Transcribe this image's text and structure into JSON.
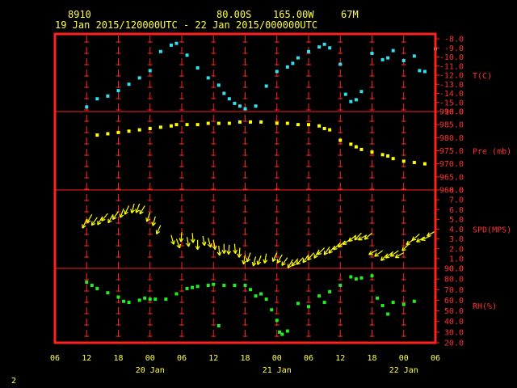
{
  "header": {
    "station_id": "8910",
    "lat": "80.00S",
    "lon": "165.00W",
    "elev": "67M",
    "time_range": "19 Jan 2015/120000UTC - 22 Jan 2015/000000UTC"
  },
  "page_number": "2",
  "colors": {
    "temp": "#33e0f0",
    "pressure": "#ffff00",
    "wind": "#ffff00",
    "rh": "#22ee22",
    "frame": "#ff2020",
    "grid": "#ff2020",
    "text": "#ffff44"
  },
  "chart_data": {
    "type": "scatter",
    "x_axis": {
      "unit": "hour",
      "range_hours": [
        -6,
        66
      ],
      "tick_labels": [
        "06",
        "12",
        "18",
        "00",
        "06",
        "12",
        "18",
        "00",
        "06",
        "12",
        "18",
        "00",
        "06"
      ],
      "tick_hours": [
        -6,
        0,
        6,
        12,
        18,
        24,
        30,
        36,
        42,
        48,
        54,
        60,
        66
      ],
      "day_labels": [
        {
          "label": "20 Jan",
          "hour": 12
        },
        {
          "label": "21 Jan",
          "hour": 36
        },
        {
          "label": "22 Jan",
          "hour": 60
        }
      ]
    },
    "panels": [
      {
        "id": "temp",
        "label": "T(C)",
        "ylim": [
          -16,
          -8
        ],
        "ticks": [
          "-8.0",
          "-9.0",
          "-10.0",
          "-11.0",
          "-12.0",
          "-13.0",
          "-14.0",
          "-15.0",
          "-16.0"
        ],
        "x": [
          0,
          2,
          4,
          6,
          8,
          10,
          12,
          14,
          16,
          17,
          19,
          21,
          23,
          25,
          26,
          27,
          28,
          29,
          30,
          32,
          34,
          36,
          38,
          39,
          40,
          42,
          44,
          45,
          46,
          48,
          49,
          50,
          51,
          52,
          54,
          56,
          57,
          58,
          60,
          62,
          63,
          64,
          66
        ],
        "y": [
          -15.5,
          -14.6,
          -14.3,
          -13.7,
          -13.0,
          -12.3,
          -11.5,
          -9.4,
          -8.7,
          -8.5,
          -9.8,
          -11.2,
          -12.3,
          -13.1,
          -14.0,
          -14.6,
          -15.1,
          -15.4,
          -15.7,
          -15.4,
          -13.2,
          -11.6,
          -11.1,
          -10.7,
          -10.1,
          -9.4,
          -8.9,
          -8.6,
          -9.0,
          -10.8,
          -14.1,
          -14.9,
          -14.7,
          -13.8,
          -9.6,
          -10.3,
          -10.1,
          -9.3,
          -10.4,
          -9.9,
          -11.5,
          -11.6,
          -9.1
        ]
      },
      {
        "id": "pressure",
        "label": "Pre (mb)",
        "ylim": [
          960,
          990
        ],
        "ticks": [
          "990.0",
          "985.0",
          "980.0",
          "975.0",
          "970.0",
          "965.0",
          "960.0"
        ],
        "x": [
          2,
          4,
          6,
          8,
          10,
          12,
          14,
          16,
          17,
          19,
          21,
          23,
          25,
          27,
          29,
          31,
          33,
          36,
          38,
          40,
          42,
          44,
          45,
          46,
          48,
          50,
          51,
          52,
          54,
          56,
          57,
          58,
          60,
          62,
          64
        ],
        "y": [
          981,
          981.5,
          982,
          982.5,
          983,
          983.5,
          984,
          984.5,
          985,
          985,
          985,
          985.5,
          985.5,
          985.5,
          986,
          986,
          986,
          985.5,
          985.5,
          985,
          985,
          984.5,
          983.5,
          983,
          979,
          977.5,
          976.5,
          975.5,
          974.5,
          973.5,
          973,
          972,
          971,
          970.5,
          970
        ]
      },
      {
        "id": "wind",
        "label": "SPD(MPS)",
        "ylim": [
          0,
          8
        ],
        "ticks": [
          "8.0",
          "7.0",
          "6.0",
          "5.0",
          "4.0",
          "3.0",
          "2.0",
          "1.0",
          "0.0"
        ],
        "x": [
          0,
          1,
          2,
          3,
          4,
          5,
          6,
          7,
          8,
          9,
          10,
          11,
          12,
          13,
          14,
          16,
          17,
          18,
          19,
          20,
          21,
          22,
          23,
          24,
          25,
          26,
          27,
          28,
          29,
          30,
          31,
          32,
          33,
          34,
          36,
          37,
          38,
          39,
          40,
          41,
          42,
          43,
          44,
          45,
          46,
          47,
          48,
          49,
          50,
          51,
          52,
          53,
          54,
          55,
          56,
          57,
          58,
          59,
          60,
          61,
          62,
          63,
          64,
          65,
          66
        ],
        "speed": [
          5,
          5.5,
          5.2,
          5.3,
          5.6,
          5.5,
          5.8,
          6.1,
          6.4,
          6.6,
          6.6,
          6.4,
          5.7,
          5.3,
          4.4,
          3.4,
          3.0,
          3.7,
          3.2,
          3.6,
          2.9,
          3.3,
          3.1,
          2.9,
          2.3,
          2.5,
          2.4,
          2.5,
          2.1,
          1.4,
          1.6,
          1.2,
          1.3,
          1.5,
          1.6,
          1.4,
          1.1,
          0.9,
          1.0,
          1.1,
          1.4,
          1.6,
          1.9,
          2.1,
          2.2,
          2.3,
          2.6,
          2.8,
          3.0,
          3.4,
          3.6,
          3.4,
          3.6,
          1.9,
          1.8,
          1.5,
          1.7,
          1.8,
          1.6,
          2.5,
          3.0,
          3.5,
          3.2,
          3.3,
          3.8
        ],
        "dir_deg": [
          205,
          210,
          215,
          210,
          220,
          210,
          215,
          200,
          205,
          195,
          200,
          210,
          200,
          195,
          205,
          165,
          160,
          185,
          170,
          175,
          180,
          170,
          165,
          170,
          175,
          180,
          185,
          175,
          185,
          190,
          200,
          195,
          200,
          190,
          205,
          210,
          215,
          210,
          220,
          225,
          215,
          220,
          210,
          225,
          215,
          220,
          225,
          230,
          235,
          230,
          225,
          240,
          230,
          240,
          235,
          225,
          230,
          235,
          240,
          225,
          235,
          230,
          240,
          245,
          240
        ]
      },
      {
        "id": "rh",
        "label": "RH(%)",
        "ylim": [
          20,
          90
        ],
        "ticks": [
          "90.0",
          "80.0",
          "70.0",
          "60.0",
          "50.0",
          "40.0",
          "30.0",
          "20.0"
        ],
        "x": [
          0,
          1,
          2,
          4,
          6,
          7,
          8,
          10,
          11,
          12,
          13,
          15,
          17,
          19,
          20,
          21,
          23,
          24,
          25,
          26,
          28,
          30,
          31,
          32,
          33,
          34,
          35,
          36,
          36.5,
          37,
          38,
          40,
          42,
          44,
          45,
          46,
          48,
          50,
          51,
          52,
          54,
          55,
          56,
          57,
          58,
          60,
          62
        ],
        "y": [
          77,
          74,
          71,
          67,
          63,
          59,
          58,
          60,
          62,
          61,
          61,
          61,
          66,
          71,
          72,
          73,
          74,
          75,
          36,
          74,
          74,
          74,
          70,
          64,
          66,
          61,
          51,
          41,
          30,
          28,
          31,
          57,
          54,
          64,
          58,
          68,
          74,
          82,
          80,
          81,
          83,
          62,
          55,
          47,
          58,
          56,
          59
        ]
      }
    ]
  }
}
